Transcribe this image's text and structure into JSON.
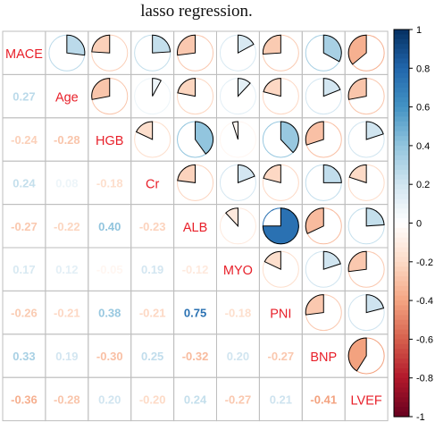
{
  "caption": "lasso regression.",
  "chart_data": {
    "type": "correlation-matrix",
    "method_upper": "pie",
    "method_lower": "number",
    "variables": [
      "MACE",
      "Age",
      "HGB",
      "Cr",
      "ALB",
      "MYO",
      "PNI",
      "BNP",
      "LVEF"
    ],
    "matrix": [
      [
        1.0,
        0.27,
        -0.24,
        0.24,
        -0.27,
        0.17,
        -0.26,
        0.33,
        -0.36
      ],
      [
        0.27,
        1.0,
        -0.28,
        0.08,
        -0.22,
        0.12,
        -0.21,
        0.19,
        -0.28
      ],
      [
        -0.24,
        -0.28,
        1.0,
        -0.18,
        0.4,
        -0.05,
        0.38,
        -0.3,
        0.2
      ],
      [
        0.24,
        0.08,
        -0.18,
        1.0,
        -0.23,
        0.19,
        -0.21,
        0.25,
        -0.2
      ],
      [
        -0.27,
        -0.22,
        0.4,
        -0.23,
        1.0,
        -0.12,
        0.75,
        -0.32,
        0.24
      ],
      [
        0.17,
        0.12,
        -0.05,
        0.19,
        -0.12,
        1.0,
        -0.18,
        0.2,
        -0.27
      ],
      [
        -0.26,
        -0.21,
        0.38,
        -0.21,
        0.75,
        -0.18,
        1.0,
        -0.27,
        0.21
      ],
      [
        0.33,
        0.19,
        -0.3,
        0.25,
        -0.32,
        0.2,
        -0.27,
        1.0,
        -0.41
      ],
      [
        -0.36,
        -0.28,
        0.2,
        -0.2,
        0.24,
        -0.27,
        0.21,
        -0.41,
        1.0
      ]
    ],
    "number_labels": [
      [
        "",
        "",
        "",
        "",
        "",
        "",
        "",
        "",
        ""
      ],
      [
        "0.27",
        "",
        "",
        "",
        "",
        "",
        "",
        "",
        ""
      ],
      [
        "-0.24",
        "-0.28",
        "",
        "",
        "",
        "",
        "",
        "",
        ""
      ],
      [
        "0.24",
        "0.08",
        "-0.18",
        "",
        "",
        "",
        "",
        "",
        ""
      ],
      [
        "-0.27",
        "-0.22",
        "0.40",
        "-0.23",
        "",
        "",
        "",
        "",
        ""
      ],
      [
        "0.17",
        "0.12",
        "-0.05",
        "0.19",
        "-0.12",
        "",
        "",
        "",
        ""
      ],
      [
        "-0.26",
        "-0.21",
        "0.38",
        "-0.21",
        "0.75",
        "-0.18",
        "",
        "",
        ""
      ],
      [
        "0.33",
        "0.19",
        "-0.30",
        "0.25",
        "-0.32",
        "0.20",
        "-0.27",
        "",
        ""
      ],
      [
        "-0.36",
        "-0.28",
        "0.20",
        "-0.20",
        "0.24",
        "-0.27",
        "0.21",
        "-0.41",
        ""
      ]
    ],
    "colorbar_ticks": [
      "1",
      "0.8",
      "0.6",
      "0.4",
      "0.2",
      "0",
      "-0.2",
      "-0.4",
      "-0.6",
      "-0.8",
      "-1"
    ],
    "colorbar_range": [
      -1,
      1
    ],
    "colors": {
      "negative_end": "#67001F",
      "mid": "#FFFFFF",
      "positive_end": "#053061",
      "diagonal_label": "#E8202A",
      "grid": "#BEBEBE"
    }
  }
}
